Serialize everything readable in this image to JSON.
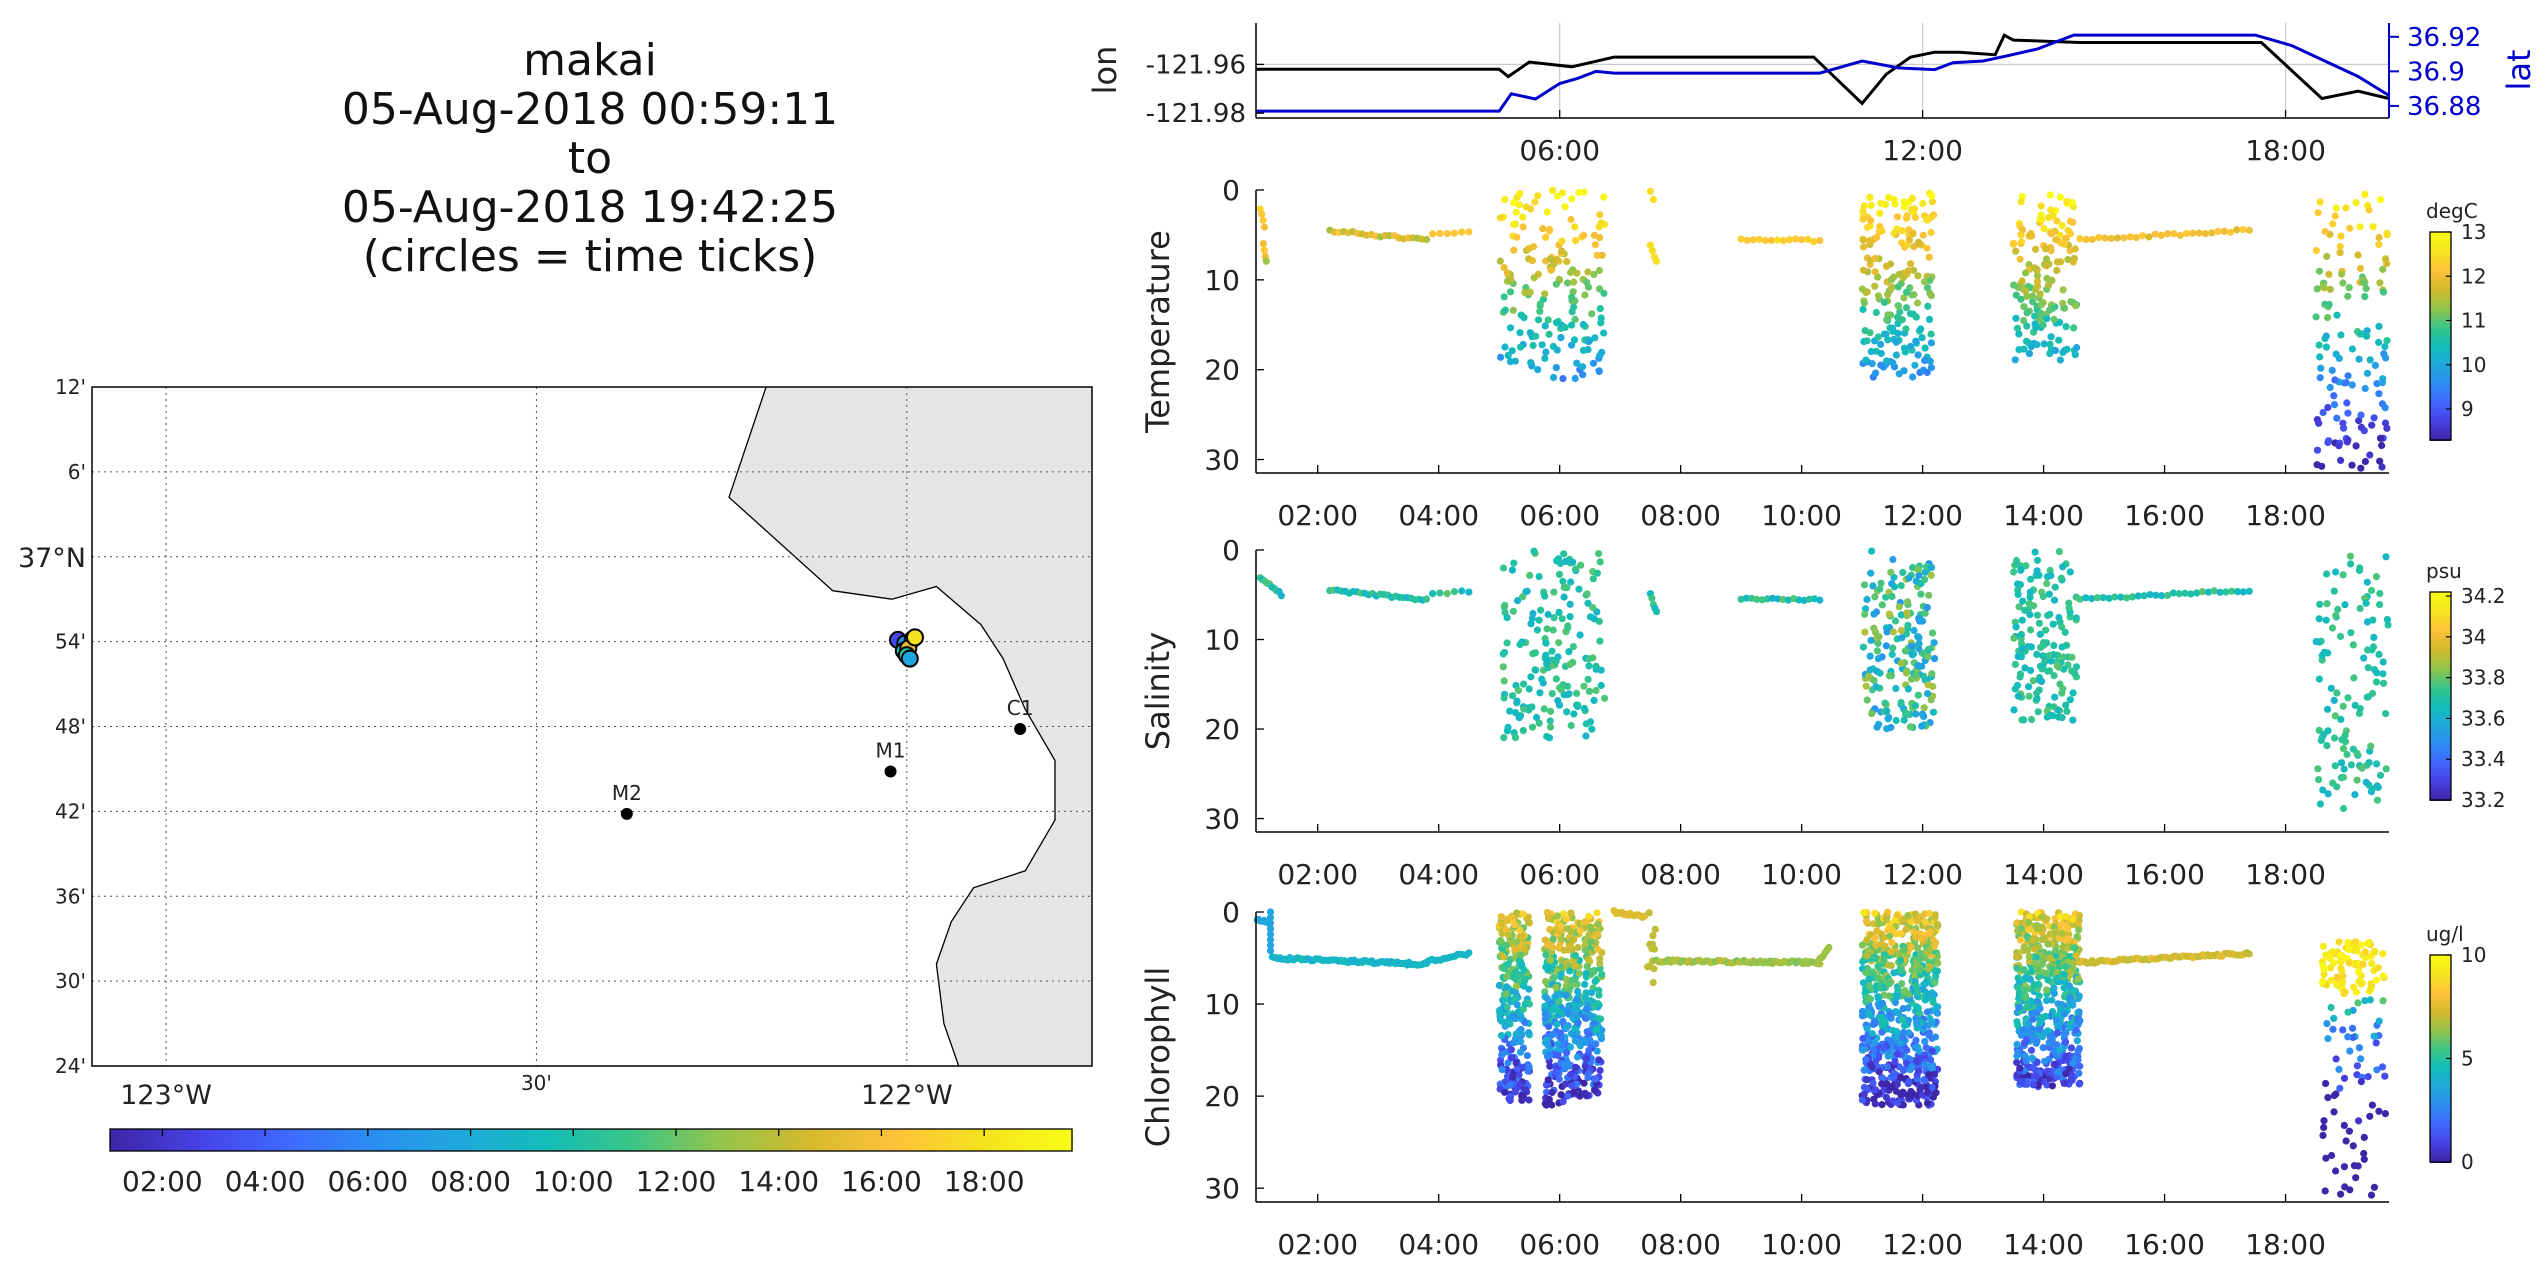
{
  "title": {
    "line1": "makai",
    "line2": "05-Aug-2018 00:59:11",
    "line3": "to",
    "line4": "05-Aug-2018 19:42:25",
    "line5": "(circles = time ticks)"
  },
  "map": {
    "lat_ticks": [
      {
        "lat": 37.2,
        "label": "12'"
      },
      {
        "lat": 37.1,
        "label": "6'"
      },
      {
        "lat": 37.0,
        "label": "37°N"
      },
      {
        "lat": 36.9,
        "label": "54'"
      },
      {
        "lat": 36.8,
        "label": "48'"
      },
      {
        "lat": 36.7,
        "label": "42'"
      },
      {
        "lat": 36.6,
        "label": "36'"
      },
      {
        "lat": 36.5,
        "label": "30'"
      },
      {
        "lat": 36.4,
        "label": "24'"
      }
    ],
    "lon_ticks": [
      {
        "lon": -123.0,
        "label": "123°W"
      },
      {
        "lon": -122.5,
        "label": "30'"
      },
      {
        "lon": -122.0,
        "label": "122°W"
      }
    ],
    "lat_range": [
      36.4,
      37.2
    ],
    "lon_range": [
      -123.1,
      -121.75
    ],
    "stations": [
      {
        "name": "C1",
        "lat": 36.797,
        "lon": -121.847
      },
      {
        "name": "M1",
        "lat": 36.747,
        "lon": -122.022
      },
      {
        "name": "M2",
        "lat": 36.697,
        "lon": -122.378
      }
    ],
    "land_color": "#e5e5e5",
    "colorbar_ticks": [
      "02:00",
      "04:00",
      "06:00",
      "08:00",
      "10:00",
      "12:00",
      "14:00",
      "16:00",
      "18:00"
    ]
  },
  "chart_data": [
    {
      "type": "line",
      "name": "lon/lat time series",
      "ylabel_left": "lon",
      "ylabel_right": "lat",
      "ylim_left": [
        -121.982,
        -121.943
      ],
      "ylim_right": [
        36.873,
        36.928
      ],
      "yticks_left": [
        "-121.96",
        "-121.98"
      ],
      "yticks_right": [
        "36.92",
        "36.9",
        "36.88"
      ],
      "xticks": [
        "06:00",
        "12:00",
        "18:00"
      ],
      "xlim_hours": [
        0.98,
        19.71
      ],
      "series": [
        {
          "name": "lon",
          "color": "#000000",
          "x": [
            0.98,
            5.0,
            5.15,
            5.5,
            6.2,
            6.9,
            10.2,
            11.0,
            11.4,
            11.8,
            12.2,
            12.6,
            13.2,
            13.35,
            13.5,
            14.6,
            17.6,
            18.6,
            19.2,
            19.71
          ],
          "y": [
            -121.962,
            -121.962,
            -121.965,
            -121.959,
            -121.961,
            -121.957,
            -121.957,
            -121.976,
            -121.964,
            -121.957,
            -121.955,
            -121.955,
            -121.956,
            -121.948,
            -121.95,
            -121.951,
            -121.951,
            -121.974,
            -121.971,
            -121.974
          ]
        },
        {
          "name": "lat",
          "color": "#0000cc",
          "x": [
            0.98,
            5.0,
            5.2,
            5.6,
            6.0,
            6.3,
            6.6,
            6.9,
            10.3,
            11.0,
            11.6,
            12.2,
            12.5,
            13.0,
            13.4,
            13.9,
            14.2,
            14.5,
            17.5,
            18.1,
            19.2,
            19.71
          ],
          "y": [
            36.877,
            36.877,
            36.887,
            36.884,
            36.893,
            36.896,
            36.9,
            36.899,
            36.899,
            36.906,
            36.902,
            36.901,
            36.905,
            36.906,
            36.909,
            36.913,
            36.917,
            36.921,
            36.921,
            36.915,
            36.897,
            36.886
          ]
        }
      ]
    },
    {
      "type": "scatter",
      "name": "Temperature",
      "ylabel": "Temperature",
      "units": "degC",
      "clim": [
        8.3,
        13
      ],
      "cbar_ticks": [
        "13",
        "12",
        "11",
        "10",
        "9"
      ],
      "cbar_tick_values": [
        13,
        12,
        11,
        10,
        9
      ],
      "ylim": [
        31.5,
        0
      ],
      "yticks": [
        0,
        10,
        20,
        30
      ],
      "xlim_hours": [
        0.98,
        19.71
      ],
      "xticks": [
        "02:00",
        "04:00",
        "06:00",
        "08:00",
        "10:00",
        "12:00",
        "14:00",
        "16:00",
        "18:00"
      ],
      "tick_hours": [
        2,
        4,
        6,
        8,
        10,
        12,
        14,
        16,
        18
      ]
    },
    {
      "type": "scatter",
      "name": "Salinity",
      "ylabel": "Salinity",
      "units": "psu",
      "clim": [
        33.2,
        34.22
      ],
      "cbar_ticks": [
        "34.2",
        "34",
        "33.8",
        "33.6",
        "33.4",
        "33.2"
      ],
      "cbar_tick_values": [
        34.2,
        34.0,
        33.8,
        33.6,
        33.4,
        33.2
      ],
      "ylim": [
        31.5,
        0
      ],
      "yticks": [
        0,
        10,
        20,
        30
      ],
      "xlim_hours": [
        0.98,
        19.71
      ],
      "xticks": [
        "02:00",
        "04:00",
        "06:00",
        "08:00",
        "10:00",
        "12:00",
        "14:00",
        "16:00",
        "18:00"
      ],
      "tick_hours": [
        2,
        4,
        6,
        8,
        10,
        12,
        14,
        16,
        18
      ]
    },
    {
      "type": "scatter",
      "name": "Chlorophyll",
      "ylabel": "Chlorophyll",
      "units": "ug/l",
      "clim": [
        0,
        10
      ],
      "cbar_ticks": [
        "10",
        "5",
        "0"
      ],
      "cbar_tick_values": [
        10,
        5,
        0
      ],
      "ylim": [
        31.5,
        0
      ],
      "yticks": [
        0,
        10,
        20,
        30
      ],
      "xlim_hours": [
        0.98,
        19.71
      ],
      "xticks": [
        "02:00",
        "04:00",
        "06:00",
        "08:00",
        "10:00",
        "12:00",
        "14:00",
        "16:00",
        "18:00"
      ],
      "tick_hours": [
        2,
        4,
        6,
        8,
        10,
        12,
        14,
        16,
        18
      ]
    }
  ],
  "colormap": [
    "#3e26a8",
    "#4743e7",
    "#3f69fe",
    "#2b8ef1",
    "#1fa9db",
    "#12bdb8",
    "#3dc584",
    "#94c44b",
    "#d3ba2d",
    "#fec23b",
    "#f5e31f",
    "#f9fb15"
  ]
}
